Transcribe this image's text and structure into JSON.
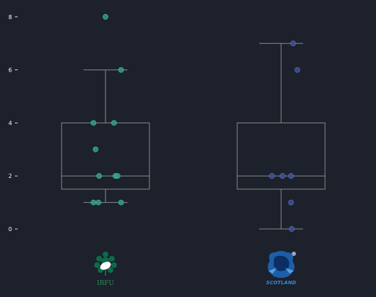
{
  "chart_data": {
    "type": "box",
    "title": "",
    "xlabel": "",
    "ylabel": "",
    "ylim": [
      -0.3,
      8.4
    ],
    "yticks": [
      0,
      2,
      4,
      6,
      8
    ],
    "ytick_labels": [
      "0",
      "2",
      "4",
      "6",
      "8"
    ],
    "grid": false,
    "legend": "none",
    "categories": [
      "IRFU",
      "SCOTLAND"
    ],
    "series": [
      {
        "logo_text": "IRFU",
        "color": "#2e9e88",
        "stats": {
          "whisker_low": 1,
          "q1": 1.5,
          "median": 2,
          "q3": 4,
          "whisker_high": 6
        },
        "points": [
          8,
          6,
          4,
          4,
          3,
          2,
          2,
          2,
          1,
          1,
          1
        ]
      },
      {
        "logo_text": "SCOTLAND",
        "color": "#3b4f96",
        "stats": {
          "whisker_low": 0,
          "q1": 1.5,
          "median": 2,
          "q3": 4,
          "whisker_high": 7
        },
        "points": [
          7,
          6,
          2,
          2,
          2,
          1,
          0
        ]
      }
    ],
    "box_color": "#8a8a8a",
    "background": "#1c212b"
  }
}
